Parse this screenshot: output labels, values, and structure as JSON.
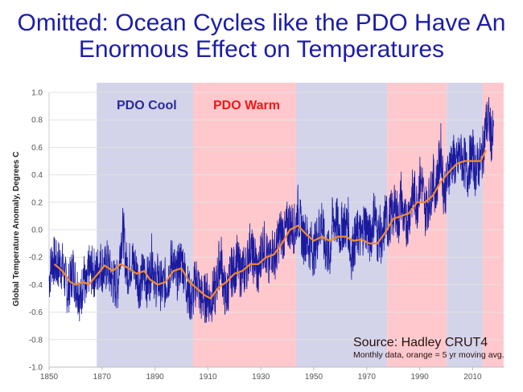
{
  "chart_data": {
    "type": "line",
    "title": [
      "Omitted:  Ocean Cycles like the PDO Have An",
      "Enormous Effect on Temperatures"
    ],
    "xlabel": "",
    "ylabel": "Global Temperature Anomaly, Degrees C",
    "xlim": [
      1850,
      2022
    ],
    "ylim": [
      -1.0,
      1.0
    ],
    "x_ticks": [
      1850,
      1870,
      1890,
      1910,
      1930,
      1950,
      1970,
      1990,
      2010
    ],
    "y_ticks": [
      "1.0",
      "0.8",
      "0.6",
      "0.4",
      "0.2",
      "0.0",
      "-0.2",
      "-0.4",
      "-0.6",
      "-0.8",
      "-1.0"
    ],
    "grid": true,
    "bands": [
      {
        "start": 1868,
        "end": 1904.4,
        "phase": "cool",
        "color": "#d3d3ea"
      },
      {
        "start": 1904.4,
        "end": 1943.3,
        "phase": "warm",
        "color": "#ffc8cc"
      },
      {
        "start": 1943.3,
        "end": 1977.7,
        "phase": "cool",
        "color": "#d3d3ea"
      },
      {
        "start": 1977.7,
        "end": 2000.2,
        "phase": "warm",
        "color": "#ffc8cc"
      },
      {
        "start": 2000.2,
        "end": 2013.8,
        "phase": "cool",
        "color": "#d3d3ea"
      },
      {
        "start": 2013.8,
        "end": 2021.7,
        "phase": "warm",
        "color": "#ffc8cc"
      }
    ],
    "band_labels": {
      "cool": "PDO Cool",
      "warm": "PDO Warm",
      "cool_color": "#2a2a9a",
      "warm_color": "#f01818"
    },
    "annotation": {
      "source": "Source:  Hadley CRUT4",
      "note": "Monthly  data, orange = 5 yr moving avg."
    },
    "series": [
      {
        "name": "Monthly data",
        "color": "#1a1aa0",
        "start_year": 1850,
        "values": [
          -0.37,
          -0.22,
          -0.23,
          -0.27,
          -0.24,
          -0.27,
          -0.35,
          -0.45,
          -0.38,
          -0.28,
          -0.39,
          -0.43,
          -0.53,
          -0.3,
          -0.48,
          -0.29,
          -0.3,
          -0.31,
          -0.32,
          -0.24,
          -0.27,
          -0.3,
          -0.25,
          -0.32,
          -0.37,
          -0.4,
          -0.4,
          -0.1,
          0.0,
          -0.25,
          -0.3,
          -0.22,
          -0.26,
          -0.3,
          -0.4,
          -0.35,
          -0.32,
          -0.38,
          -0.35,
          -0.17,
          -0.4,
          -0.35,
          -0.4,
          -0.42,
          -0.38,
          -0.35,
          -0.25,
          -0.22,
          -0.37,
          -0.27,
          -0.22,
          -0.29,
          -0.4,
          -0.48,
          -0.53,
          -0.4,
          -0.35,
          -0.49,
          -0.5,
          -0.5,
          -0.48,
          -0.52,
          -0.46,
          -0.45,
          -0.27,
          -0.2,
          -0.42,
          -0.5,
          -0.38,
          -0.3,
          -0.3,
          -0.22,
          -0.31,
          -0.3,
          -0.3,
          -0.23,
          -0.1,
          -0.21,
          -0.21,
          -0.36,
          -0.16,
          -0.1,
          -0.15,
          -0.3,
          -0.13,
          -0.19,
          -0.15,
          -0.03,
          -0.02,
          -0.05,
          0.03,
          0.04,
          0.02,
          0.0,
          0.15,
          0.03,
          -0.07,
          -0.04,
          -0.11,
          -0.11,
          -0.17,
          -0.07,
          0.0,
          0.08,
          -0.12,
          -0.15,
          -0.2,
          0.05,
          0.07,
          0.04,
          -0.03,
          0.05,
          0.02,
          0.05,
          -0.2,
          -0.11,
          -0.06,
          -0.02,
          -0.07,
          0.05,
          0.03,
          -0.08,
          0.01,
          0.16,
          -0.07,
          -0.01,
          -0.15,
          0.13,
          0.02,
          0.1,
          0.12,
          0.17,
          0.04,
          0.26,
          0.05,
          0.05,
          0.11,
          0.25,
          0.26,
          0.17,
          0.36,
          0.33,
          0.13,
          0.19,
          0.23,
          0.38,
          0.28,
          0.42,
          0.59,
          0.3,
          0.3,
          0.44,
          0.5,
          0.51,
          0.45,
          0.55,
          0.51,
          0.49,
          0.39,
          0.51,
          0.56,
          0.43,
          0.47,
          0.5,
          0.58,
          0.76,
          0.8,
          0.68
        ]
      },
      {
        "name": "5 yr moving avg.",
        "color": "#f5892a",
        "x": [
          1852,
          1855,
          1858,
          1860,
          1863,
          1865,
          1868,
          1871,
          1874,
          1877,
          1880,
          1883,
          1886,
          1888,
          1891,
          1894,
          1897,
          1900,
          1903,
          1906,
          1909,
          1911,
          1914,
          1917,
          1920,
          1923,
          1926,
          1929,
          1932,
          1935,
          1938,
          1941,
          1944,
          1947,
          1950,
          1953,
          1956,
          1959,
          1962,
          1965,
          1968,
          1971,
          1974,
          1977,
          1980,
          1983,
          1986,
          1989,
          1992,
          1995,
          1998,
          2001,
          2004,
          2007,
          2010,
          2013,
          2015
        ],
        "y": [
          -0.25,
          -0.3,
          -0.38,
          -0.4,
          -0.38,
          -0.4,
          -0.33,
          -0.26,
          -0.3,
          -0.25,
          -0.28,
          -0.32,
          -0.3,
          -0.36,
          -0.4,
          -0.38,
          -0.3,
          -0.28,
          -0.38,
          -0.43,
          -0.48,
          -0.5,
          -0.42,
          -0.38,
          -0.32,
          -0.3,
          -0.25,
          -0.25,
          -0.2,
          -0.18,
          -0.1,
          0.0,
          0.03,
          -0.03,
          -0.08,
          -0.05,
          -0.08,
          -0.05,
          -0.05,
          -0.08,
          -0.07,
          -0.1,
          -0.1,
          -0.02,
          0.08,
          0.1,
          0.12,
          0.2,
          0.2,
          0.25,
          0.35,
          0.42,
          0.48,
          0.5,
          0.5,
          0.5,
          0.58
        ]
      }
    ]
  }
}
